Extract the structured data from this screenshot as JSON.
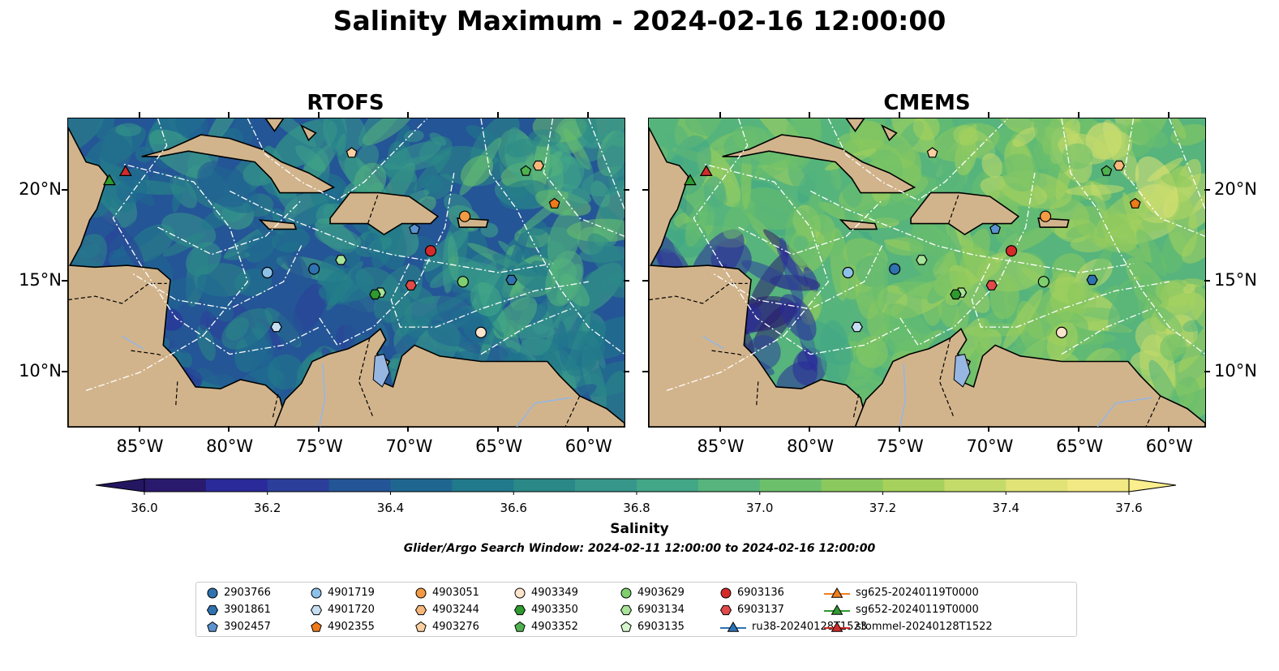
{
  "title": "Salinity Maximum - 2024-02-16 12:00:00",
  "panels": [
    {
      "title": "RTOFS"
    },
    {
      "title": "CMEMS"
    }
  ],
  "axes": {
    "lon_ticks": [
      "85°W",
      "80°W",
      "75°W",
      "70°W",
      "65°W",
      "60°W"
    ],
    "lat_ticks": [
      "20°N",
      "15°N",
      "10°N"
    ],
    "lon_range": [
      -89,
      -58
    ],
    "lat_range": [
      7,
      24
    ]
  },
  "colorbar": {
    "label": "Salinity",
    "min": 36.0,
    "max": 37.6,
    "ticks": [
      "36.0",
      "36.2",
      "36.4",
      "36.6",
      "36.8",
      "37.0",
      "37.2",
      "37.4",
      "37.6"
    ],
    "extend": "both",
    "colors": [
      "#2a1a6e",
      "#2a2a9a",
      "#2b3f9a",
      "#245596",
      "#1f6791",
      "#217a8b",
      "#2a8987",
      "#36978a",
      "#42a787",
      "#56b47c",
      "#6cc06c",
      "#8bc95e",
      "#a6d15c",
      "#c4db6a",
      "#e1e377",
      "#f2e884"
    ]
  },
  "search_window": "Glider/Argo Search Window: 2024-02-11 12:00:00 to 2024-02-16 12:00:00",
  "legend": [
    {
      "label": "2903766",
      "marker": "circle",
      "color": "#2f72b0"
    },
    {
      "label": "3901861",
      "marker": "hexagon",
      "color": "#2f72b0"
    },
    {
      "label": "3902457",
      "marker": "pentagon",
      "color": "#5a93cf"
    },
    {
      "label": "4901719",
      "marker": "circle",
      "color": "#8ec1e8"
    },
    {
      "label": "4901720",
      "marker": "hexagon",
      "color": "#c5def2"
    },
    {
      "label": "4902355",
      "marker": "pentagon",
      "color": "#ee7a1a"
    },
    {
      "label": "4903051",
      "marker": "circle",
      "color": "#f39a44"
    },
    {
      "label": "4903244",
      "marker": "hexagon",
      "color": "#f7b77b"
    },
    {
      "label": "4903276",
      "marker": "pentagon",
      "color": "#fbcfa0"
    },
    {
      "label": "4903349",
      "marker": "circle",
      "color": "#fde4cc"
    },
    {
      "label": "4903350",
      "marker": "hexagon",
      "color": "#2f9a2f"
    },
    {
      "label": "4903352",
      "marker": "pentagon",
      "color": "#4fb24f"
    },
    {
      "label": "4903629",
      "marker": "circle",
      "color": "#7fcf6f"
    },
    {
      "label": "6903134",
      "marker": "hexagon",
      "color": "#a8e39a"
    },
    {
      "label": "6903135",
      "marker": "pentagon",
      "color": "#d6f5cc"
    },
    {
      "label": "6903136",
      "marker": "circle",
      "color": "#d42a2a"
    },
    {
      "label": "6903137",
      "marker": "hexagon",
      "color": "#e24a4a"
    },
    {
      "label": "ru38-20240128T1523",
      "marker": "triangle-line",
      "color": "#2b73b5"
    },
    {
      "label": "sg625-20240119T0000",
      "marker": "triangle-line",
      "color": "#f07f1f"
    },
    {
      "label": "sg652-20240119T0000",
      "marker": "triangle-line",
      "color": "#2f9a2f"
    },
    {
      "label": "stommel-20240128T1522",
      "marker": "triangle-line",
      "color": "#d12b2b"
    }
  ],
  "profiles": [
    {
      "id": "4903276",
      "lon": -73.2,
      "lat": 22.1
    },
    {
      "id": "4903352",
      "lon": -63.5,
      "lat": 21.1
    },
    {
      "id": "4903244",
      "lon": -62.8,
      "lat": 21.4
    },
    {
      "id": "4902355",
      "lon": -61.9,
      "lat": 19.3
    },
    {
      "id": "4903051",
      "lon": -66.9,
      "lat": 18.6
    },
    {
      "id": "3902457",
      "lon": -69.7,
      "lat": 17.9
    },
    {
      "id": "6903136",
      "lon": -68.8,
      "lat": 16.7
    },
    {
      "id": "4903629",
      "lon": -67.0,
      "lat": 15.0
    },
    {
      "id": "3901861",
      "lon": -64.3,
      "lat": 15.1
    },
    {
      "id": "6903137",
      "lon": -69.9,
      "lat": 14.8
    },
    {
      "id": "6903134",
      "lon": -71.6,
      "lat": 14.4
    },
    {
      "id": "4903350",
      "lon": -71.9,
      "lat": 14.3
    },
    {
      "id": "4901720",
      "lon": -77.4,
      "lat": 12.5
    },
    {
      "id": "4903349",
      "lon": -66.0,
      "lat": 12.2
    },
    {
      "id": "4901719",
      "lon": -77.9,
      "lat": 15.5
    },
    {
      "id": "2903766",
      "lon": -75.3,
      "lat": 15.7
    },
    {
      "id": "6903134",
      "lon": -73.8,
      "lat": 16.2
    },
    {
      "id": "sg652-20240119T0000",
      "lon": -86.7,
      "lat": 20.6
    },
    {
      "id": "stommel-20240128T1522",
      "lon": -85.8,
      "lat": 21.1
    }
  ]
}
